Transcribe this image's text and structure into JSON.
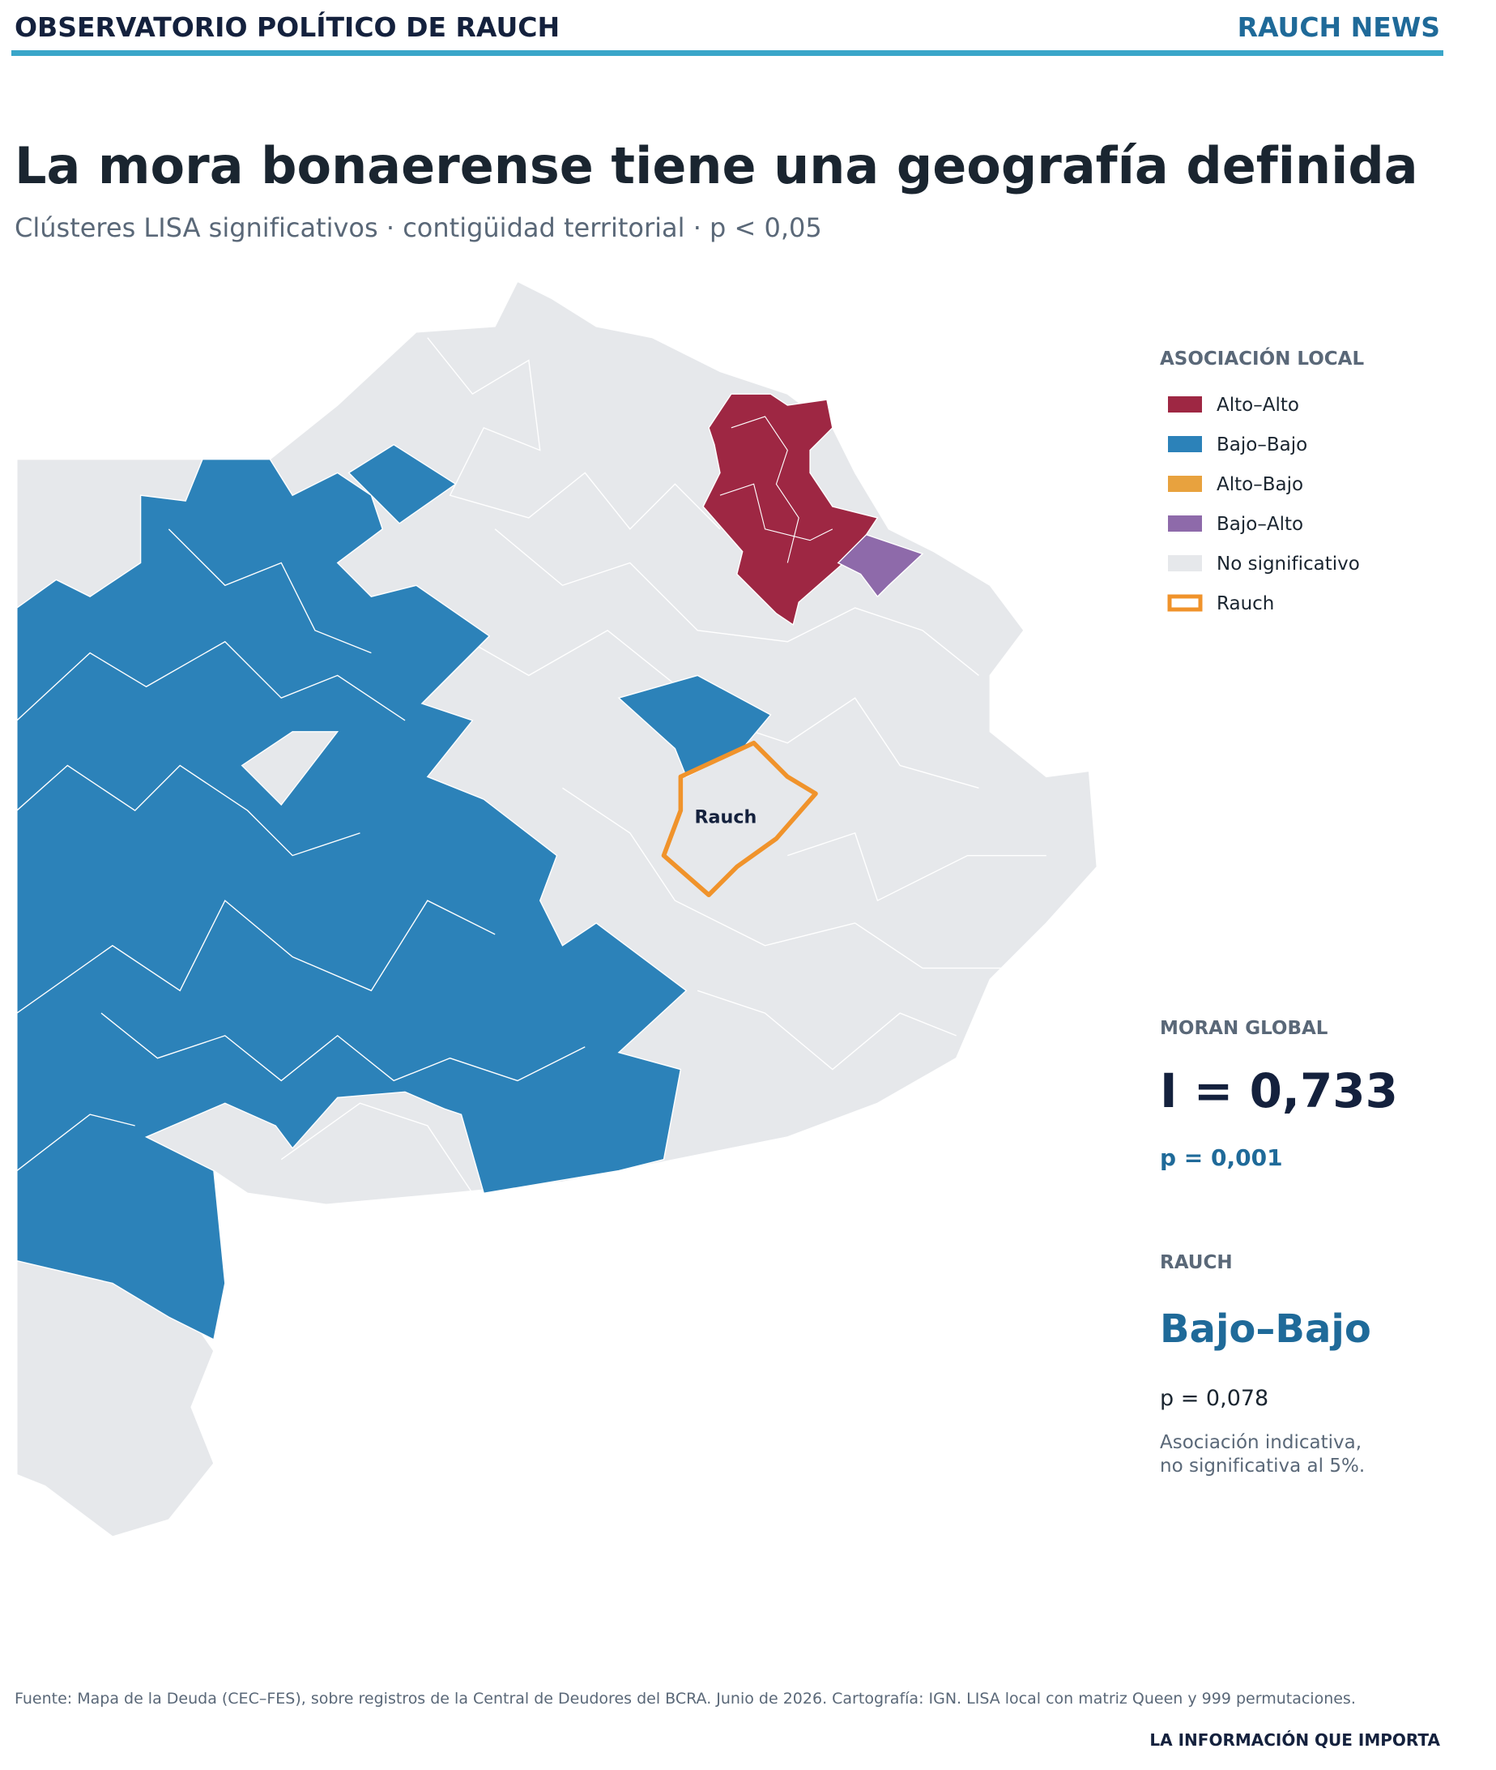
{
  "header": {
    "title": "OBSERVATORIO POLÍTICO DE RAUCH",
    "brand": "RAUCH NEWS"
  },
  "headline": {
    "title": "La mora bonaerense tiene una geografía definida",
    "subtitle": "Clústeres LISA significativos · contigüidad territorial · p < 0,05"
  },
  "legend": {
    "title": "ASOCIACIÓN LOCAL",
    "items": [
      {
        "label": "Alto–Alto",
        "color": "#9e2743"
      },
      {
        "label": "Bajo–Bajo",
        "color": "#2c82b9"
      },
      {
        "label": "Alto–Bajo",
        "color": "#e8a23e"
      },
      {
        "label": "Bajo–Alto",
        "color": "#8e6aaa"
      },
      {
        "label": "No significativo",
        "color": "#e6e8eb"
      },
      {
        "label": "Rauch",
        "color": "#f0932b"
      }
    ]
  },
  "map": {
    "label": "Rauch"
  },
  "moran": {
    "title": "MORAN GLOBAL",
    "statistic": "I = 0,733",
    "p": "p = 0,001"
  },
  "rauch": {
    "title": "RAUCH",
    "cluster": "Bajo–Bajo",
    "p": "p = 0,078",
    "note": [
      "Asociación indicativa,",
      "no significativa al 5%."
    ]
  },
  "footer": {
    "source": "Fuente: Mapa de la Deuda (CEC–FES), sobre registros de la Central de Deudores del BCRA. Junio de 2026. Cartografía: IGN. LISA local con matriz Queen y 999 permutaciones.",
    "tagline": "LA INFORMACIÓN QUE IMPORTA"
  }
}
